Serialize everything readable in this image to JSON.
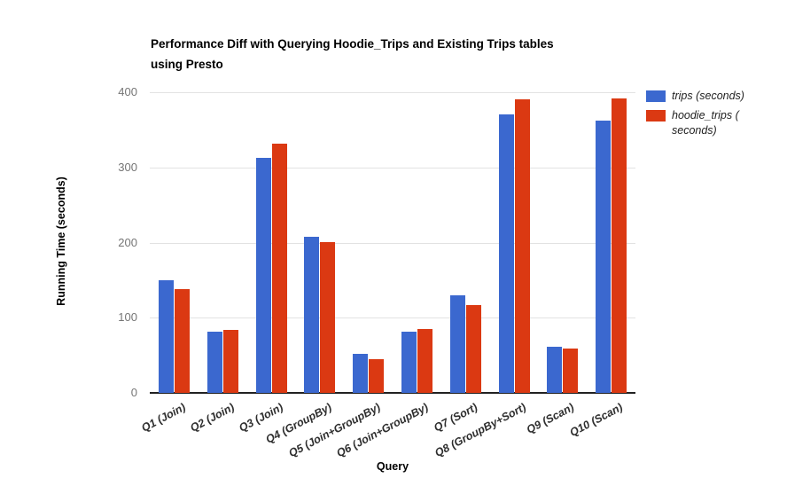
{
  "chart": {
    "title_lines": [
      "Performance Diff with Querying Hoodie_Trips and Existing Trips tables",
      "using Presto"
    ]
  },
  "legend": {
    "items": [
      {
        "lines": [
          "trips (seconds)",
          ""
        ]
      },
      {
        "lines": [
          "hoodie_trips (",
          "seconds)"
        ]
      }
    ]
  },
  "chart_data": {
    "type": "bar",
    "title": "Performance Diff with Querying Hoodie_Trips and Existing Trips tables using Presto",
    "xlabel": "Query",
    "ylabel": "Running Time (seconds)",
    "ylim": [
      0,
      400
    ],
    "yticks": [
      0,
      100,
      200,
      300,
      400
    ],
    "grid": true,
    "legend_position": "right",
    "background_color": "#ffffff",
    "gridline_color": "#e2e2e2",
    "axis_line_color": "#212121",
    "tick_label_color": "#757575",
    "categories": [
      "Q1 (Join)",
      "Q2 (Join)",
      "Q3 (Join)",
      "Q4 (GroupBy)",
      "Q5 (Join+GroupBy)",
      "Q6 (Join+GroupBy)",
      "Q7 (Sort)",
      "Q8 (GroupBy+Sort)",
      "Q9 (Scan)",
      "Q10 (Scan)"
    ],
    "series": [
      {
        "name": "trips (seconds)",
        "color": "#3B68CF",
        "values": [
          150,
          81,
          313,
          208,
          52,
          81,
          130,
          371,
          61,
          362
        ]
      },
      {
        "name": "hoodie_trips (seconds)",
        "color": "#DB3912",
        "values": [
          138,
          84,
          331,
          201,
          45,
          85,
          117,
          390,
          59,
          392
        ]
      }
    ]
  }
}
